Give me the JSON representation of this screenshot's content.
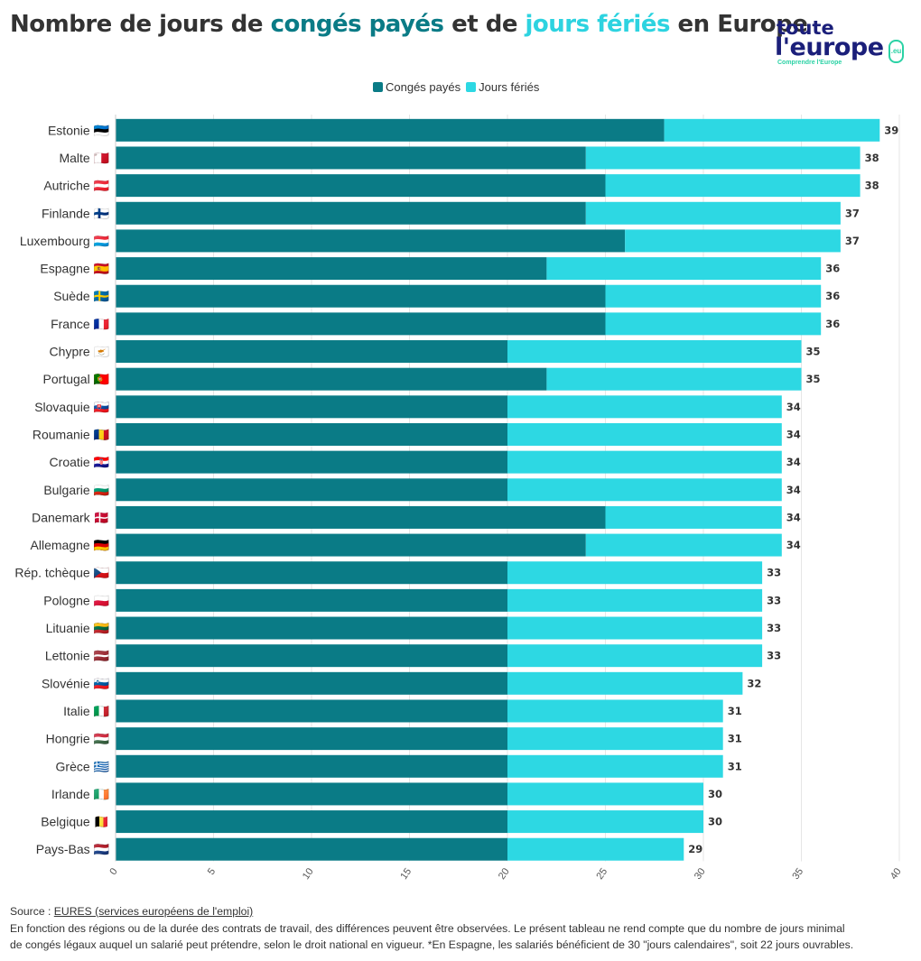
{
  "title": {
    "part1": "Nombre de jours de ",
    "accent1": "congés payés",
    "part2": " et de ",
    "accent2": "jours fériés",
    "part3": " en Europe"
  },
  "logo": {
    "line1": "toute",
    "line2": "l'europe",
    "tagline": "Comprendre l'Europe",
    "badge": ".eu"
  },
  "colors": {
    "conges": "#0a7b86",
    "feries": "#2dd8e3"
  },
  "legend": {
    "conges": "Congés payés",
    "feries": "Jours fériés"
  },
  "chart_data": {
    "type": "bar",
    "orientation": "horizontal",
    "stacked": true,
    "categories": [
      "Estonie",
      "Malte",
      "Autriche",
      "Finlande",
      "Luxembourg",
      "Espagne",
      "Suède",
      "France",
      "Chypre",
      "Portugal",
      "Slovaquie",
      "Roumanie",
      "Croatie",
      "Bulgarie",
      "Danemark",
      "Allemagne",
      "Rép. tchèque",
      "Pologne",
      "Lituanie",
      "Lettonie",
      "Slovénie",
      "Italie",
      "Hongrie",
      "Grèce",
      "Irlande",
      "Belgique",
      "Pays-Bas"
    ],
    "flags": [
      "🇪🇪",
      "🇲🇹",
      "🇦🇹",
      "🇫🇮",
      "🇱🇺",
      "🇪🇸",
      "🇸🇪",
      "🇫🇷",
      "🇨🇾",
      "🇵🇹",
      "🇸🇰",
      "🇷🇴",
      "🇭🇷",
      "🇧🇬",
      "🇩🇰",
      "🇩🇪",
      "🇨🇿",
      "🇵🇱",
      "🇱🇹",
      "🇱🇻",
      "🇸🇮",
      "🇮🇹",
      "🇭🇺",
      "🇬🇷",
      "🇮🇪",
      "🇧🇪",
      "🇳🇱"
    ],
    "series": [
      {
        "name": "Congés payés",
        "values": [
          28,
          24,
          25,
          24,
          26,
          22,
          25,
          25,
          20,
          22,
          20,
          20,
          20,
          20,
          25,
          24,
          20,
          20,
          20,
          20,
          20,
          20,
          20,
          20,
          20,
          20,
          20
        ]
      },
      {
        "name": "Jours fériés",
        "values": [
          11,
          14,
          13,
          13,
          11,
          14,
          11,
          11,
          15,
          13,
          14,
          14,
          14,
          14,
          9,
          10,
          13,
          13,
          13,
          13,
          12,
          11,
          11,
          11,
          10,
          10,
          9
        ]
      }
    ],
    "totals": [
      "39",
      "38",
      "38",
      "37",
      "37",
      "36",
      "36",
      "36",
      "35",
      "35",
      "34",
      "34",
      "34",
      "34",
      "34",
      "34",
      "33",
      "33",
      "33",
      "33",
      "32",
      "31",
      "31",
      "31",
      "30",
      "30",
      "29"
    ],
    "xlim": [
      0,
      40
    ],
    "xticks": [
      "0",
      "5",
      "10",
      "15",
      "20",
      "25",
      "30",
      "35",
      "40"
    ],
    "grid": true,
    "legend_position": "top-center"
  },
  "footer": {
    "source_prefix": "Source : ",
    "source_link": "EURES (services européens de l'emploi)",
    "note_line1": "En fonction des régions ou de la durée des contrats de travail, des différences peuvent être observées. Le présent tableau ne rend compte que du nombre de jours minimal",
    "note_line2": "de congés légaux auquel un salarié peut prétendre, selon le droit national en vigueur. *En Espagne, les salariés bénéficient de 30 \"jours calendaires\", soit 22 jours ouvrables."
  }
}
